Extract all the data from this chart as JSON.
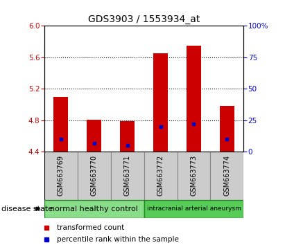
{
  "title": "GDS3903 / 1553934_at",
  "samples": [
    "GSM663769",
    "GSM663770",
    "GSM663771",
    "GSM663772",
    "GSM663773",
    "GSM663774"
  ],
  "transformed_count": [
    5.1,
    4.81,
    4.79,
    5.65,
    5.75,
    4.98
  ],
  "percentile_rank": [
    10,
    7,
    5,
    20,
    22,
    10
  ],
  "ylim": [
    4.4,
    6.0
  ],
  "yticks_left": [
    4.4,
    4.8,
    5.2,
    5.6,
    6.0
  ],
  "yticks_right": [
    0,
    25,
    50,
    75,
    100
  ],
  "bar_color": "#cc0000",
  "marker_color": "#0000cc",
  "bar_bottom": 4.4,
  "groups": [
    {
      "label": "normal healthy control",
      "start": 0,
      "end": 2,
      "color": "#88dd88"
    },
    {
      "label": "intracranial arterial aneurysm",
      "start": 3,
      "end": 5,
      "color": "#55cc55"
    }
  ],
  "legend_items": [
    {
      "label": "transformed count",
      "color": "#cc0000"
    },
    {
      "label": "percentile rank within the sample",
      "color": "#0000cc"
    }
  ],
  "tick_color_left": "#cc0000",
  "tick_color_right": "#0000cc",
  "bar_width": 0.45,
  "gray_box_color": "#cccccc",
  "gray_box_edge": "#888888",
  "group_box_edge": "#228822"
}
